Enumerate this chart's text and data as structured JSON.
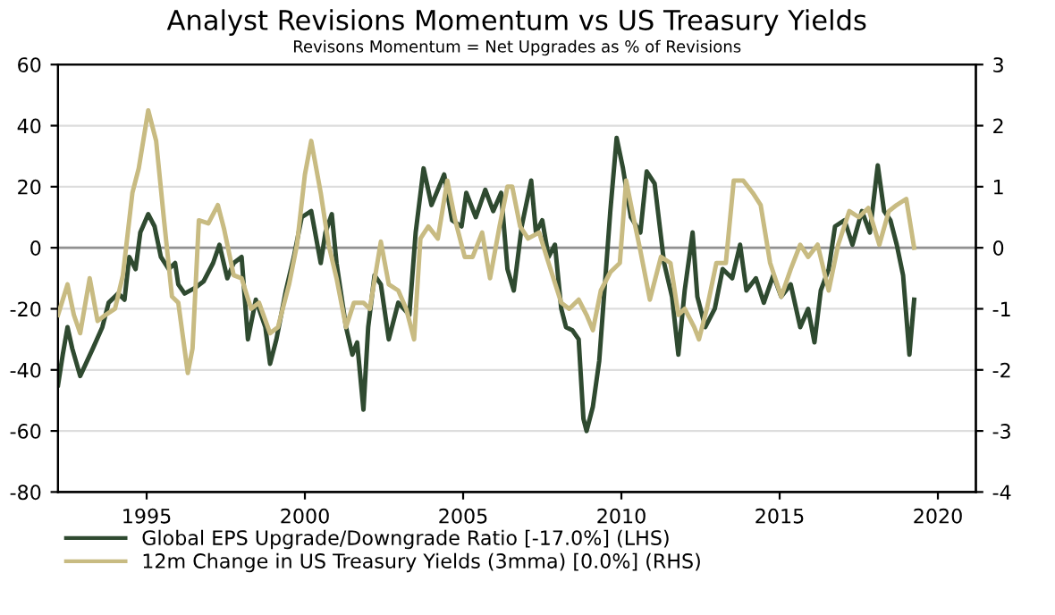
{
  "chart_data": {
    "type": "line",
    "title": "Analyst Revisions Momentum vs US Treasury Yields",
    "subtitle": "Revisons Momentum = Net Upgrades as % of Revisions",
    "xlim": [
      1992.2,
      2021.2
    ],
    "xticks": [
      1995,
      2000,
      2005,
      2010,
      2015,
      2020
    ],
    "ylim": [
      -80,
      60
    ],
    "yticks": [
      -80,
      -60,
      -40,
      -20,
      0,
      20,
      40,
      60
    ],
    "y2lim": [
      -4,
      3
    ],
    "y2ticks": [
      -4,
      -3,
      -2,
      -1,
      0,
      1,
      2,
      3
    ],
    "grid": "y",
    "legend": "bottom",
    "ref_lines": [
      {
        "axis": "y",
        "value": 0,
        "color": "#909090"
      }
    ],
    "series": [
      {
        "name": "Global EPS Upgrade/Downgrade Ratio [-17.0%] (LHS)",
        "color": "#2f4a30",
        "x": [
          1992.2,
          1992.35,
          1992.5,
          1992.65,
          1992.9,
          1993.3,
          1993.6,
          1993.8,
          1994.1,
          1994.3,
          1994.45,
          1994.65,
          1994.8,
          1995.05,
          1995.25,
          1995.45,
          1995.7,
          1995.9,
          1996.0,
          1996.2,
          1996.55,
          1996.8,
          1997.1,
          1997.3,
          1997.55,
          1997.75,
          1998.0,
          1998.2,
          1998.45,
          1998.75,
          1998.9,
          1999.1,
          1999.4,
          1999.65,
          1999.9,
          2000.2,
          2000.5,
          2000.65,
          2000.85,
          2001.0,
          2001.3,
          2001.5,
          2001.65,
          2001.85,
          2002.0,
          2002.2,
          2002.4,
          2002.65,
          2002.95,
          2003.3,
          2003.5,
          2003.75,
          2004.0,
          2004.4,
          2004.65,
          2004.95,
          2005.1,
          2005.4,
          2005.7,
          2005.95,
          2006.2,
          2006.4,
          2006.6,
          2006.85,
          2007.15,
          2007.3,
          2007.5,
          2007.7,
          2007.9,
          2008.1,
          2008.25,
          2008.45,
          2008.65,
          2008.8,
          2008.9,
          2009.1,
          2009.3,
          2009.5,
          2009.65,
          2009.85,
          2010.05,
          2010.3,
          2010.6,
          2010.8,
          2011.05,
          2011.35,
          2011.6,
          2011.8,
          2012.0,
          2012.25,
          2012.4,
          2012.65,
          2012.95,
          2013.2,
          2013.5,
          2013.75,
          2013.95,
          2014.25,
          2014.5,
          2014.8,
          2015.05,
          2015.35,
          2015.65,
          2015.9,
          2016.1,
          2016.3,
          2016.55,
          2016.75,
          2017.05,
          2017.3,
          2017.6,
          2017.85,
          2018.1,
          2018.3,
          2018.5,
          2018.7,
          2018.9,
          2019.1,
          2019.25
        ],
        "values": [
          -45,
          -35,
          -26,
          -33,
          -42,
          -33,
          -26,
          -18,
          -15,
          -17,
          -3,
          -7,
          5,
          11,
          7,
          -3,
          -7,
          -5,
          -12,
          -15,
          -13,
          -11,
          -5,
          1,
          -10,
          -5,
          -3,
          -30,
          -17,
          -26,
          -38,
          -30,
          -14,
          -3,
          10,
          12,
          -5,
          5,
          11,
          -5,
          -26,
          -35,
          -31,
          -53,
          -26,
          -9,
          -12,
          -30,
          -18,
          -22,
          5,
          26,
          14,
          24,
          9,
          7,
          18,
          10,
          19,
          12,
          18,
          -7,
          -14,
          7,
          22,
          5,
          9,
          -3,
          1,
          -20,
          -26,
          -27,
          -30,
          -56,
          -60,
          -52,
          -37,
          -9,
          12,
          36,
          26,
          10,
          5,
          25,
          21,
          -5,
          -16,
          -35,
          -14,
          5,
          -16,
          -26,
          -20,
          -7,
          -10,
          1,
          -14,
          -10,
          -18,
          -9,
          -16,
          -12,
          -26,
          -20,
          -31,
          -14,
          -7,
          7,
          9,
          1,
          12,
          5,
          27,
          12,
          9,
          1,
          -9,
          -35,
          -17
        ]
      },
      {
        "name": "12m Change in US Treasury Yields (3mma) [0.0%] (RHS)",
        "color": "#c8bb82",
        "axis": "y2",
        "x": [
          1992.2,
          1992.5,
          1992.7,
          1992.9,
          1993.2,
          1993.45,
          1993.7,
          1994.0,
          1994.25,
          1994.55,
          1994.75,
          1995.05,
          1995.3,
          1995.55,
          1995.8,
          1996.0,
          1996.3,
          1996.45,
          1996.65,
          1996.95,
          1997.25,
          1997.45,
          1997.75,
          1998.0,
          1998.3,
          1998.55,
          1998.9,
          1999.15,
          1999.5,
          1999.75,
          2000.0,
          2000.2,
          2000.5,
          2000.75,
          2001.0,
          2001.3,
          2001.55,
          2001.85,
          2002.05,
          2002.4,
          2002.65,
          2002.95,
          2003.2,
          2003.45,
          2003.65,
          2003.9,
          2004.2,
          2004.5,
          2004.75,
          2005.05,
          2005.3,
          2005.6,
          2005.85,
          2006.15,
          2006.4,
          2006.55,
          2006.8,
          2007.05,
          2007.4,
          2007.7,
          2008.1,
          2008.35,
          2008.65,
          2008.9,
          2009.1,
          2009.35,
          2009.65,
          2009.95,
          2010.15,
          2010.4,
          2010.6,
          2010.9,
          2011.25,
          2011.55,
          2011.8,
          2012.0,
          2012.3,
          2012.45,
          2012.7,
          2013.0,
          2013.3,
          2013.55,
          2013.85,
          2014.15,
          2014.4,
          2014.7,
          2015.05,
          2015.35,
          2015.65,
          2015.9,
          2016.2,
          2016.55,
          2016.85,
          2017.2,
          2017.5,
          2017.8,
          2018.15,
          2018.45,
          2018.7,
          2019.0,
          2019.25
        ],
        "values": [
          -1.1,
          -0.6,
          -1.1,
          -1.4,
          -0.5,
          -1.2,
          -1.1,
          -1.0,
          -0.45,
          0.9,
          1.3,
          2.25,
          1.75,
          0.45,
          -0.8,
          -0.9,
          -2.05,
          -1.65,
          0.45,
          0.4,
          0.7,
          0.3,
          -0.45,
          -0.5,
          -1.0,
          -0.9,
          -1.4,
          -1.3,
          -0.6,
          0.05,
          1.2,
          1.75,
          0.9,
          0.05,
          -0.5,
          -1.3,
          -0.9,
          -0.9,
          -1.0,
          0.1,
          -0.6,
          -0.7,
          -1.0,
          -1.5,
          0.15,
          0.35,
          0.15,
          1.1,
          0.45,
          -0.15,
          -0.15,
          0.25,
          -0.5,
          0.35,
          1.0,
          1.0,
          0.35,
          0.15,
          0.25,
          -0.25,
          -0.9,
          -1.0,
          -0.85,
          -1.1,
          -1.35,
          -0.7,
          -0.4,
          -0.25,
          1.1,
          0.45,
          -0.05,
          -0.85,
          -0.15,
          -0.25,
          -1.1,
          -1.0,
          -1.3,
          -1.5,
          -1.0,
          -0.25,
          -0.25,
          1.1,
          1.1,
          0.9,
          0.7,
          -0.25,
          -0.8,
          -0.35,
          0.05,
          -0.15,
          0.05,
          -0.7,
          0.05,
          0.6,
          0.5,
          0.65,
          0.05,
          0.6,
          0.7,
          0.8,
          0.0
        ]
      }
    ]
  }
}
